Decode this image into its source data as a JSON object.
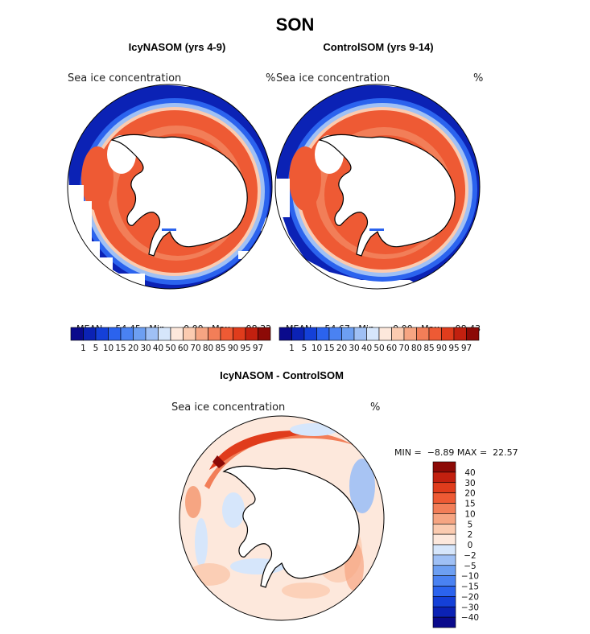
{
  "figure_title": "SON",
  "panels": [
    {
      "title": "IcyNASOM (yrs 4-9)",
      "variable": "Sea ice concentration",
      "unit": "%",
      "stats": {
        "mean_label": "MEAN=",
        "mean": "54.45",
        "min_label": "Min=",
        "min": "0.00",
        "max_label": "Max=",
        "max": "98.32"
      }
    },
    {
      "title": "ControlSOM (yrs 9-14)",
      "variable": "Sea ice concentration",
      "unit": "%",
      "stats": {
        "mean_label": "MEAN=",
        "mean": "54.67",
        "min_label": "Min=",
        "min": "0.00",
        "max_label": "Max=",
        "max": "98.43"
      }
    },
    {
      "title": "IcyNASOM - ControlSOM",
      "variable": "Sea ice concentration",
      "unit": "%",
      "stats": {
        "min_label": "MIN =",
        "min": "−8.89",
        "max_label": "MAX =",
        "max": "22.57"
      }
    }
  ],
  "colorbar_abs": {
    "labels": [
      "1",
      "5",
      "10",
      "15",
      "20",
      "30",
      "40",
      "50",
      "60",
      "70",
      "80",
      "85",
      "90",
      "95",
      "97"
    ],
    "colors": [
      "#0a0a8c",
      "#0b22b5",
      "#1440d8",
      "#2b63ee",
      "#4a82f2",
      "#6d9ff2",
      "#9fc0f5",
      "#d6e6fb",
      "#fde8dc",
      "#fbcbb0",
      "#f6a582",
      "#f27e58",
      "#ee5a34",
      "#e03c1c",
      "#c2200f",
      "#8c0a06"
    ]
  },
  "colorbar_diff": {
    "labels": [
      "40",
      "30",
      "20",
      "15",
      "10",
      "5",
      "2",
      "0",
      "−2",
      "−5",
      "−10",
      "−15",
      "−20",
      "−30",
      "−40"
    ],
    "colors": [
      "#8c0a06",
      "#c2200f",
      "#e03c1c",
      "#ee5a34",
      "#f27e58",
      "#f6a582",
      "#fbcbb0",
      "#fde8dc",
      "#d6e6fb",
      "#9fc0f5",
      "#6d9ff2",
      "#4a82f2",
      "#2b63ee",
      "#1440d8",
      "#0b22b5",
      "#0a0a8c"
    ]
  }
}
